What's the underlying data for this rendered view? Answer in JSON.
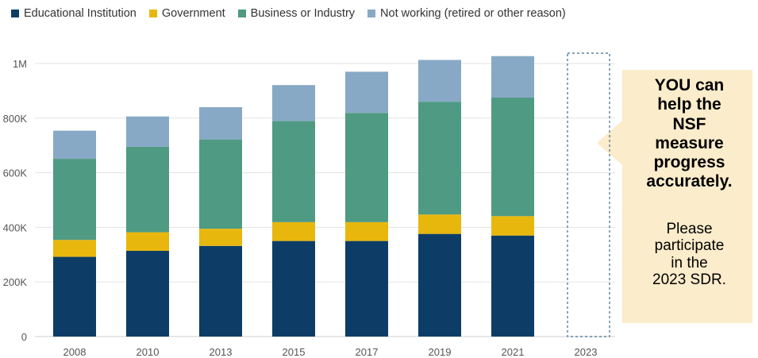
{
  "colors": {
    "educational": "#0d3d66",
    "government": "#e8b70d",
    "business": "#4f9a82",
    "not_working": "#87a9c5",
    "callout_bg": "#fbeccb",
    "placeholder_border": "#3b6a8c",
    "grid": "#e3e3e3",
    "axis_text": "#555555"
  },
  "legend": {
    "items": [
      {
        "label": "Educational Institution",
        "color_key": "educational"
      },
      {
        "label": "Government",
        "color_key": "government"
      },
      {
        "label": "Business or Industry",
        "color_key": "business"
      },
      {
        "label": "Not working (retired or other reason)",
        "color_key": "not_working"
      }
    ]
  },
  "chart_data": {
    "type": "bar",
    "stacked": true,
    "categories": [
      "2008",
      "2010",
      "2013",
      "2015",
      "2017",
      "2019",
      "2021",
      "2023"
    ],
    "series": [
      {
        "name": "Educational Institution",
        "color_key": "educational",
        "values": [
          292000,
          314000,
          332000,
          350000,
          350000,
          376000,
          370000,
          null
        ]
      },
      {
        "name": "Government",
        "color_key": "government",
        "values": [
          62000,
          68000,
          63000,
          69000,
          69000,
          71000,
          71000,
          null
        ]
      },
      {
        "name": "Business or Industry",
        "color_key": "business",
        "values": [
          297000,
          313000,
          327000,
          370000,
          400000,
          413000,
          434000,
          null
        ]
      },
      {
        "name": "Not working (retired or other reason)",
        "color_key": "not_working",
        "values": [
          103000,
          111000,
          118000,
          132000,
          151000,
          153000,
          152000,
          null
        ]
      }
    ],
    "placeholder_category": "2023",
    "ylim": [
      0,
      1000000
    ],
    "yticks": [
      0,
      200000,
      400000,
      600000,
      800000,
      1000000
    ],
    "ytick_labels": [
      "0",
      "200K",
      "400K",
      "600K",
      "800K",
      "1M"
    ],
    "grid": true,
    "legend_position": "top-left",
    "xlabel": "",
    "ylabel": "",
    "title": ""
  },
  "callout": {
    "bold_lines": [
      "YOU can",
      "help the",
      "NSF",
      "measure",
      "progress",
      "accurately."
    ],
    "body_lines": [
      "Please",
      "participate",
      "in the",
      "2023 SDR."
    ]
  }
}
